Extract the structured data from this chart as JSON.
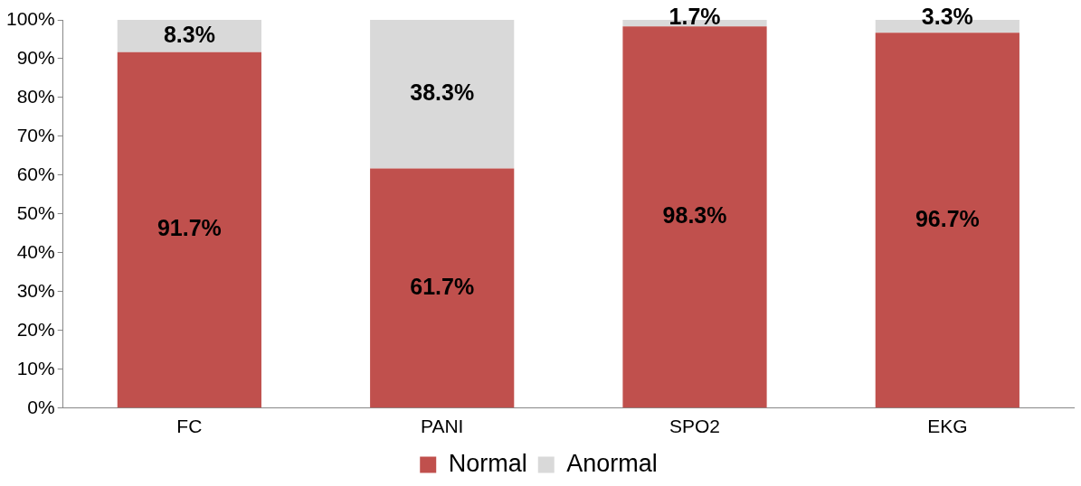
{
  "chart_data": {
    "type": "bar",
    "stacked": true,
    "categories": [
      "FC",
      "PANI",
      "SPO2",
      "EKG"
    ],
    "series": [
      {
        "name": "Normal",
        "color": "#c0504d",
        "values": [
          91.7,
          61.7,
          98.3,
          96.7
        ],
        "value_labels": [
          "91.7%",
          "61.7%",
          "98.3%",
          "96.7%"
        ]
      },
      {
        "name": "Anormal",
        "color": "#d9d9d9",
        "values": [
          8.3,
          38.3,
          1.7,
          3.3
        ],
        "value_labels": [
          "8.3%",
          "38.3%",
          "1.7%",
          "3.3%"
        ]
      }
    ],
    "ylim": [
      0,
      100
    ],
    "yticks": [
      {
        "value": 0,
        "label": "0%"
      },
      {
        "value": 10,
        "label": "10%"
      },
      {
        "value": 20,
        "label": "20%"
      },
      {
        "value": 30,
        "label": "30%"
      },
      {
        "value": 40,
        "label": "40%"
      },
      {
        "value": 50,
        "label": "50%"
      },
      {
        "value": 60,
        "label": "60%"
      },
      {
        "value": 70,
        "label": "70%"
      },
      {
        "value": 80,
        "label": "80%"
      },
      {
        "value": 90,
        "label": "90%"
      },
      {
        "value": 100,
        "label": "100%"
      }
    ],
    "grid": false,
    "legend": "bottom"
  }
}
